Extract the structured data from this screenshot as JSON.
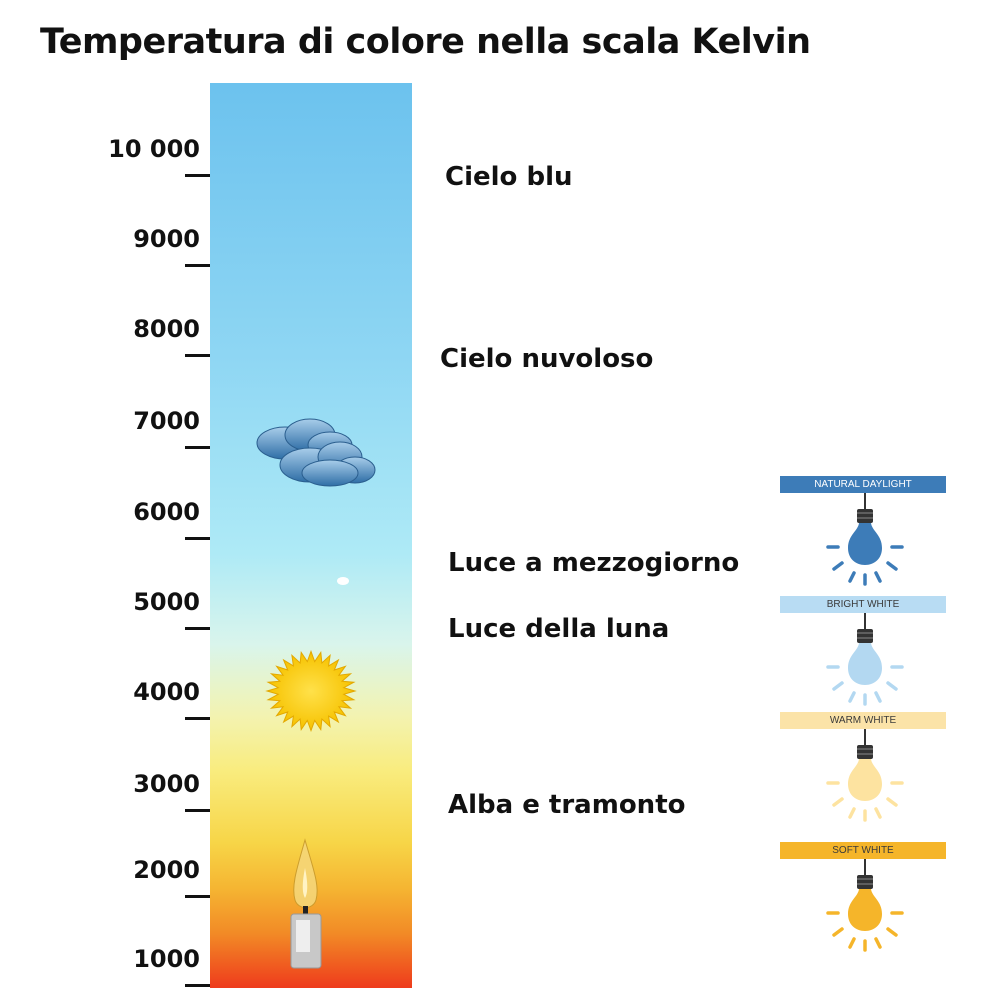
{
  "title": "Temperatura di colore nella scala Kelvin",
  "scale": {
    "ticks": [
      "10 000",
      "9000",
      "8000",
      "7000",
      "6000",
      "5000",
      "4000",
      "3000",
      "2000",
      "1000"
    ]
  },
  "annotations": [
    "Cielo blu",
    "Cielo nuvoloso",
    "Luce a mezzogiorno",
    "Luce della luna",
    "Alba e tramonto"
  ],
  "icons": [
    "cloud-icon",
    "sun-icon",
    "candle-icon"
  ],
  "bulbs": [
    {
      "label": "NATURAL DAYLIGHT",
      "bar_color": "#3d7cb8",
      "text_color": "#ffffff",
      "bulb_color": "#3d7cb8"
    },
    {
      "label": "BRIGHT WHITE",
      "bar_color": "#b8dcf3",
      "text_color": "#3a3a3a",
      "bulb_color": "#b3d8f1"
    },
    {
      "label": "WARM WHITE",
      "bar_color": "#fbe3a8",
      "text_color": "#3a3a3a",
      "bulb_color": "#fde3a0"
    },
    {
      "label": "SOFT WHITE",
      "bar_color": "#f5b52a",
      "text_color": "#3a3a3a",
      "bulb_color": "#f5b52a"
    }
  ]
}
